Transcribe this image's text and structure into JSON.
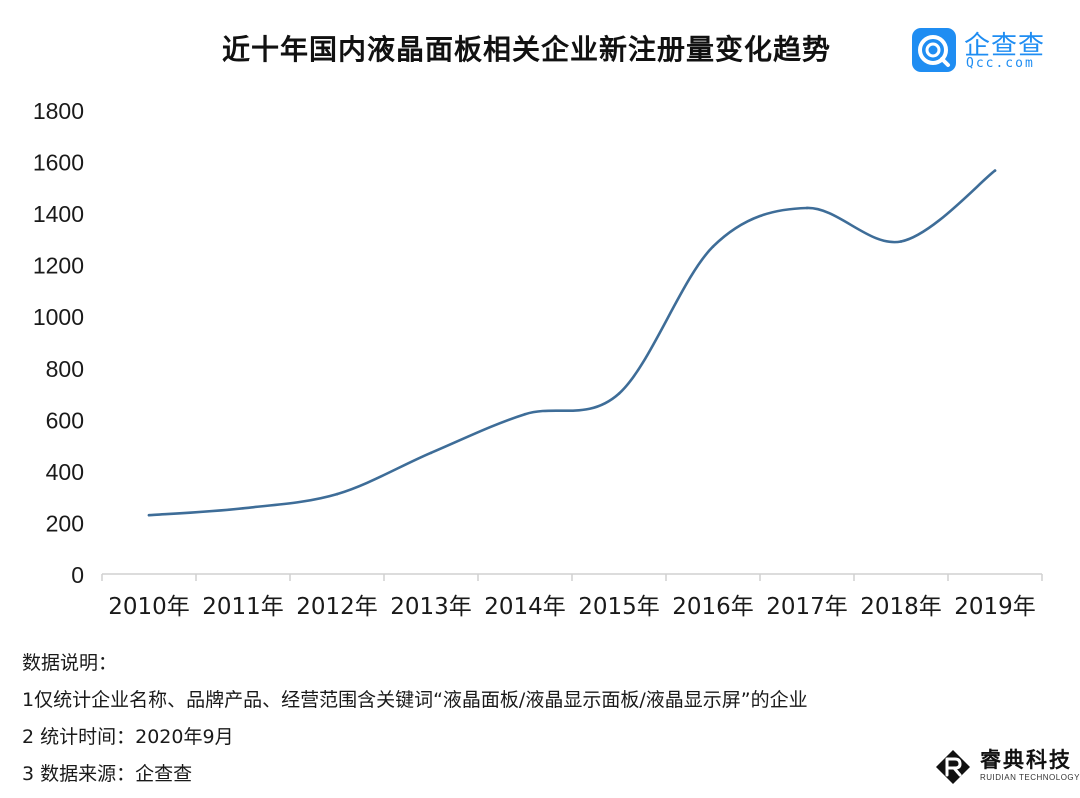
{
  "brand": {
    "name": "企查查",
    "domain": "Qcc.com",
    "color": "#1f8df2"
  },
  "notes": {
    "heading": "数据说明：",
    "line1": "1仅统计企业名称、品牌产品、经营范围含关键词“液晶面板/液晶显示面板/液晶显示屏”的企业",
    "line2": "2 统计时间：2020年9月",
    "line3": "3 数据来源：企查查"
  },
  "watermark": {
    "name": "睿典科技",
    "sub": "RUIDIAN TECHNOLOGY"
  },
  "chart_data": {
    "type": "line",
    "title": "近十年国内液晶面板相关企业新注册量变化趋势",
    "xlabel": "",
    "ylabel": "",
    "categories": [
      "2010年",
      "2011年",
      "2012年",
      "2013年",
      "2014年",
      "2015年",
      "2016年",
      "2017年",
      "2018年",
      "2019年"
    ],
    "values": [
      228,
      255,
      310,
      470,
      620,
      700,
      1270,
      1420,
      1290,
      1565
    ],
    "ylim": [
      0,
      1800
    ],
    "yticks": [
      0,
      200,
      400,
      600,
      800,
      1000,
      1200,
      1400,
      1600,
      1800
    ],
    "line_color": "#3e6d98",
    "smooth": true,
    "grid": false,
    "legend": "none"
  }
}
